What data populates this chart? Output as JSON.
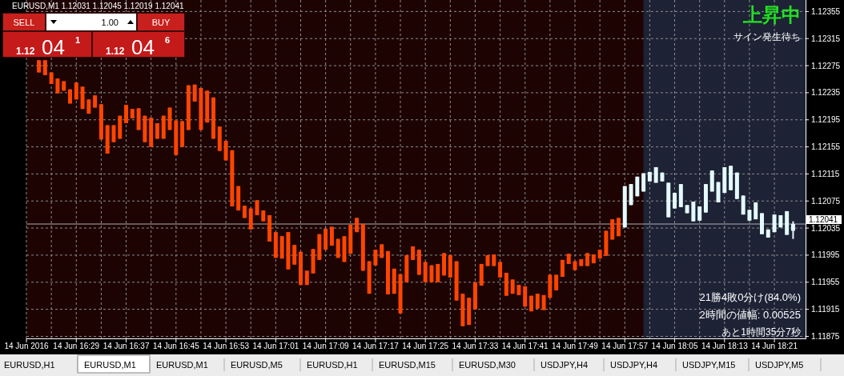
{
  "chart_data": {
    "type": "candlestick",
    "title": "EURUSD,M1  1.12031 1.12045 1.12019 1.12041",
    "xlim": [
      "2016-06-14T16:21",
      "2016-06-14T18:26"
    ],
    "ylim": [
      1.11872,
      1.12372
    ],
    "yticks": [
      1.12355,
      1.12315,
      1.12275,
      1.12235,
      1.12195,
      1.12155,
      1.12115,
      1.12075,
      1.12035,
      1.11995,
      1.11955,
      1.11915,
      1.11875
    ],
    "xticks": [
      {
        "value": "2016-06-14T16:21",
        "label": "14 Jun 2016"
      },
      {
        "value": "2016-06-14T16:25",
        "label": null
      },
      {
        "value": "2016-06-14T16:29",
        "label": "14 Jun 16:29"
      },
      {
        "value": "2016-06-14T16:33",
        "label": null
      },
      {
        "value": "2016-06-14T16:37",
        "label": "14 Jun 16:37"
      },
      {
        "value": "2016-06-14T16:41",
        "label": null
      },
      {
        "value": "2016-06-14T16:45",
        "label": "14 Jun 16:45"
      },
      {
        "value": "2016-06-14T16:49",
        "label": null
      },
      {
        "value": "2016-06-14T16:53",
        "label": "14 Jun 16:53"
      },
      {
        "value": "2016-06-14T16:57",
        "label": null
      },
      {
        "value": "2016-06-14T17:01",
        "label": "14 Jun 17:01"
      },
      {
        "value": "2016-06-14T17:05",
        "label": null
      },
      {
        "value": "2016-06-14T17:09",
        "label": "14 Jun 17:09"
      },
      {
        "value": "2016-06-14T17:13",
        "label": null
      },
      {
        "value": "2016-06-14T17:17",
        "label": "14 Jun 17:17"
      },
      {
        "value": "2016-06-14T17:21",
        "label": null
      },
      {
        "value": "2016-06-14T17:25",
        "label": "14 Jun 17:25"
      },
      {
        "value": "2016-06-14T17:29",
        "label": null
      },
      {
        "value": "2016-06-14T17:33",
        "label": "14 Jun 17:33"
      },
      {
        "value": "2016-06-14T17:37",
        "label": null
      },
      {
        "value": "2016-06-14T17:41",
        "label": "14 Jun 17:41"
      },
      {
        "value": "2016-06-14T17:45",
        "label": null
      },
      {
        "value": "2016-06-14T17:49",
        "label": "14 Jun 17:49"
      },
      {
        "value": "2016-06-14T17:53",
        "label": null
      },
      {
        "value": "2016-06-14T17:57",
        "label": "14 Jun 17:57"
      },
      {
        "value": "2016-06-14T18:01",
        "label": null
      },
      {
        "value": "2016-06-14T18:05",
        "label": "14 Jun 18:05"
      },
      {
        "value": "2016-06-14T18:09",
        "label": null
      },
      {
        "value": "2016-06-14T18:13",
        "label": "14 Jun 18:13"
      },
      {
        "value": "2016-06-14T18:17",
        "label": null
      },
      {
        "value": "2016-06-14T18:21",
        "label": "14 Jun 18:21"
      }
    ],
    "grid": true,
    "bands": [
      {
        "axis": "x",
        "from": "2016-06-14T18:00",
        "to": "2016-06-14T18:26",
        "color": "#1d2235"
      }
    ],
    "ref_lines": [
      {
        "axis": "y",
        "value": 1.12041,
        "label": "1.12041",
        "color": "#b0b0b0"
      }
    ],
    "series": [
      {
        "color": "#ff4500",
        "x": [
          "2016-06-14T16:23",
          "2016-06-14T16:24",
          "2016-06-14T16:25",
          "2016-06-14T16:26",
          "2016-06-14T16:27",
          "2016-06-14T16:28",
          "2016-06-14T16:29",
          "2016-06-14T16:30",
          "2016-06-14T16:31",
          "2016-06-14T16:32",
          "2016-06-14T16:33",
          "2016-06-14T16:34",
          "2016-06-14T16:35",
          "2016-06-14T16:36",
          "2016-06-14T16:37",
          "2016-06-14T16:38",
          "2016-06-14T16:39",
          "2016-06-14T16:40",
          "2016-06-14T16:41",
          "2016-06-14T16:42",
          "2016-06-14T16:43",
          "2016-06-14T16:44",
          "2016-06-14T16:45",
          "2016-06-14T16:46",
          "2016-06-14T16:47",
          "2016-06-14T16:48",
          "2016-06-14T16:49",
          "2016-06-14T16:50",
          "2016-06-14T16:51",
          "2016-06-14T16:52",
          "2016-06-14T16:53",
          "2016-06-14T16:54",
          "2016-06-14T16:55",
          "2016-06-14T16:56",
          "2016-06-14T16:57",
          "2016-06-14T16:58",
          "2016-06-14T16:59",
          "2016-06-14T17:00",
          "2016-06-14T17:01",
          "2016-06-14T17:02",
          "2016-06-14T17:03",
          "2016-06-14T17:04",
          "2016-06-14T17:05",
          "2016-06-14T17:06",
          "2016-06-14T17:07",
          "2016-06-14T17:08",
          "2016-06-14T17:09",
          "2016-06-14T17:10",
          "2016-06-14T17:11",
          "2016-06-14T17:12",
          "2016-06-14T17:13",
          "2016-06-14T17:14",
          "2016-06-14T17:15",
          "2016-06-14T17:16",
          "2016-06-14T17:17",
          "2016-06-14T17:18",
          "2016-06-14T17:19",
          "2016-06-14T17:20",
          "2016-06-14T17:21",
          "2016-06-14T17:22",
          "2016-06-14T17:23",
          "2016-06-14T17:24",
          "2016-06-14T17:25",
          "2016-06-14T17:26",
          "2016-06-14T17:27",
          "2016-06-14T17:28",
          "2016-06-14T17:29",
          "2016-06-14T17:30",
          "2016-06-14T17:31",
          "2016-06-14T17:32",
          "2016-06-14T17:33",
          "2016-06-14T17:34",
          "2016-06-14T17:35",
          "2016-06-14T17:36",
          "2016-06-14T17:37",
          "2016-06-14T17:38",
          "2016-06-14T17:39",
          "2016-06-14T17:40",
          "2016-06-14T17:41",
          "2016-06-14T17:42",
          "2016-06-14T17:43",
          "2016-06-14T17:44",
          "2016-06-14T17:45",
          "2016-06-14T17:46",
          "2016-06-14T17:47",
          "2016-06-14T17:48",
          "2016-06-14T17:49",
          "2016-06-14T17:50",
          "2016-06-14T17:51",
          "2016-06-14T17:52",
          "2016-06-14T17:53",
          "2016-06-14T17:54",
          "2016-06-14T17:55",
          "2016-06-14T17:56"
        ],
        "ohlc": [
          [
            1.12283,
            1.12283,
            1.12265,
            1.12265
          ],
          [
            1.12283,
            1.12283,
            1.12261,
            1.12261
          ],
          [
            1.12265,
            1.12265,
            1.12248,
            1.12248
          ],
          [
            1.12256,
            1.12256,
            1.12234,
            1.12234
          ],
          [
            1.12252,
            1.12252,
            1.12238,
            1.12238
          ],
          [
            1.1224,
            1.1224,
            1.12219,
            1.12219
          ],
          [
            1.1225,
            1.1225,
            1.12225,
            1.12225
          ],
          [
            1.12244,
            1.12244,
            1.12211,
            1.12211
          ],
          [
            1.12225,
            1.12225,
            1.12204,
            1.12204
          ],
          [
            1.12231,
            1.12231,
            1.12213,
            1.12213
          ],
          [
            1.12218,
            1.12218,
            1.12166,
            1.12166
          ],
          [
            1.12187,
            1.12187,
            1.12145,
            1.12145
          ],
          [
            1.12187,
            1.12187,
            1.12162,
            1.12162
          ],
          [
            1.12201,
            1.12201,
            1.12167,
            1.12167
          ],
          [
            1.12217,
            1.12217,
            1.1219,
            1.1219
          ],
          [
            1.12211,
            1.12211,
            1.12197,
            1.12197
          ],
          [
            1.12212,
            1.12212,
            1.1218,
            1.1218
          ],
          [
            1.12201,
            1.12201,
            1.12162,
            1.12162
          ],
          [
            1.12198,
            1.12198,
            1.12155,
            1.12155
          ],
          [
            1.1219,
            1.1219,
            1.12167,
            1.12167
          ],
          [
            1.12201,
            1.12201,
            1.12167,
            1.12167
          ],
          [
            1.12213,
            1.12213,
            1.1218,
            1.1218
          ],
          [
            1.12194,
            1.12194,
            1.12143,
            1.12143
          ],
          [
            1.12193,
            1.12193,
            1.12155,
            1.12155
          ],
          [
            1.12246,
            1.12246,
            1.1218,
            1.1218
          ],
          [
            1.12247,
            1.12247,
            1.12222,
            1.12222
          ],
          [
            1.12242,
            1.12242,
            1.1218,
            1.1218
          ],
          [
            1.12238,
            1.12238,
            1.12191,
            1.12191
          ],
          [
            1.12228,
            1.12228,
            1.12167,
            1.12167
          ],
          [
            1.12185,
            1.12185,
            1.12149,
            1.12149
          ],
          [
            1.12164,
            1.12164,
            1.12135,
            1.12135
          ],
          [
            1.1215,
            1.1215,
            1.12067,
            1.12067
          ],
          [
            1.12097,
            1.12097,
            1.12061,
            1.12061
          ],
          [
            1.12068,
            1.12068,
            1.1205,
            1.1205
          ],
          [
            1.12064,
            1.12064,
            1.12033,
            1.12033
          ],
          [
            1.12076,
            1.12076,
            1.12054,
            1.12054
          ],
          [
            1.12061,
            1.12061,
            1.12045,
            1.12045
          ],
          [
            1.12054,
            1.12054,
            1.12015,
            1.12015
          ],
          [
            1.12029,
            1.12029,
            1.11991,
            1.11991
          ],
          [
            1.12023,
            1.12023,
            1.1199,
            1.1199
          ],
          [
            1.12029,
            1.12029,
            1.11974,
            1.11974
          ],
          [
            1.1201,
            1.1201,
            1.11981,
            1.11981
          ],
          [
            1.12,
            1.12,
            1.11951,
            1.11951
          ],
          [
            1.11972,
            1.11972,
            1.11951,
            1.11951
          ],
          [
            1.12004,
            1.12004,
            1.11968,
            1.11968
          ],
          [
            1.12026,
            1.12026,
            1.11988,
            1.11988
          ],
          [
            1.12034,
            1.12034,
            1.12003,
            1.12003
          ],
          [
            1.12037,
            1.12037,
            1.12009,
            1.12009
          ],
          [
            1.12019,
            1.12019,
            1.11991,
            1.11991
          ],
          [
            1.12023,
            1.12023,
            1.11985,
            1.11985
          ],
          [
            1.1204,
            1.1204,
            1.11997,
            1.11997
          ],
          [
            1.1205,
            1.1205,
            1.12029,
            1.12029
          ],
          [
            1.12041,
            1.12041,
            1.11972,
            1.11972
          ],
          [
            1.11986,
            1.11986,
            1.11938,
            1.11938
          ],
          [
            1.12003,
            1.12003,
            1.1198,
            1.1198
          ],
          [
            1.12011,
            1.12011,
            1.11991,
            1.11991
          ],
          [
            1.12001,
            1.12001,
            1.11937,
            1.11937
          ],
          [
            1.11975,
            1.11975,
            1.11938,
            1.11938
          ],
          [
            1.11967,
            1.11967,
            1.11909,
            1.11909
          ],
          [
            1.11995,
            1.11995,
            1.11955,
            1.11955
          ],
          [
            1.12008,
            1.12008,
            1.11988,
            1.11988
          ],
          [
            1.12003,
            1.12003,
            1.11966,
            1.11966
          ],
          [
            1.11985,
            1.11985,
            1.11955,
            1.11955
          ],
          [
            1.1198,
            1.1198,
            1.11955,
            1.11955
          ],
          [
            1.11982,
            1.11982,
            1.11955,
            1.11955
          ],
          [
            1.11998,
            1.11998,
            1.11965,
            1.11965
          ],
          [
            1.11995,
            1.11995,
            1.11962,
            1.11962
          ],
          [
            1.11986,
            1.11986,
            1.11928,
            1.11928
          ],
          [
            1.11938,
            1.11938,
            1.1189,
            1.1189
          ],
          [
            1.11932,
            1.11932,
            1.11892,
            1.11892
          ],
          [
            1.11955,
            1.11955,
            1.11915,
            1.11915
          ],
          [
            1.11982,
            1.11982,
            1.1195,
            1.1195
          ],
          [
            1.11995,
            1.11995,
            1.11979,
            1.11979
          ],
          [
            1.11996,
            1.11996,
            1.11979,
            1.11979
          ],
          [
            1.11985,
            1.11985,
            1.11962,
            1.11962
          ],
          [
            1.11969,
            1.11969,
            1.11935,
            1.11935
          ],
          [
            1.11959,
            1.11959,
            1.11938,
            1.11938
          ],
          [
            1.11951,
            1.11951,
            1.11936,
            1.11936
          ],
          [
            1.11949,
            1.11949,
            1.11919,
            1.11919
          ],
          [
            1.11935,
            1.11935,
            1.11912,
            1.11912
          ],
          [
            1.11938,
            1.11938,
            1.11916,
            1.11916
          ],
          [
            1.11936,
            1.11936,
            1.11914,
            1.11914
          ],
          [
            1.11966,
            1.11966,
            1.11932,
            1.11932
          ],
          [
            1.11966,
            1.11966,
            1.11943,
            1.11943
          ],
          [
            1.11988,
            1.11988,
            1.11963,
            1.11963
          ],
          [
            1.11997,
            1.11997,
            1.11982,
            1.11982
          ],
          [
            1.11986,
            1.11986,
            1.11973,
            1.11973
          ],
          [
            1.11989,
            1.11989,
            1.11979,
            1.11979
          ],
          [
            1.11998,
            1.11998,
            1.11979,
            1.11979
          ],
          [
            1.11996,
            1.11996,
            1.11983,
            1.11983
          ],
          [
            1.12003,
            1.12003,
            1.1199,
            1.1199
          ],
          [
            1.12031,
            1.12031,
            1.11994,
            1.11994
          ],
          [
            1.12048,
            1.12048,
            1.12018,
            1.12018
          ],
          [
            1.1205,
            1.1205,
            1.12023,
            1.12023
          ]
        ]
      },
      {
        "color": "#e4faff",
        "x": [
          "2016-06-14T17:57",
          "2016-06-14T17:58",
          "2016-06-14T17:59",
          "2016-06-14T18:00",
          "2016-06-14T18:01",
          "2016-06-14T18:02",
          "2016-06-14T18:03",
          "2016-06-14T18:04",
          "2016-06-14T18:05",
          "2016-06-14T18:06",
          "2016-06-14T18:07",
          "2016-06-14T18:08",
          "2016-06-14T18:09",
          "2016-06-14T18:10",
          "2016-06-14T18:11",
          "2016-06-14T18:12",
          "2016-06-14T18:13",
          "2016-06-14T18:14",
          "2016-06-14T18:15",
          "2016-06-14T18:16",
          "2016-06-14T18:17",
          "2016-06-14T18:18",
          "2016-06-14T18:19",
          "2016-06-14T18:20",
          "2016-06-14T18:21",
          "2016-06-14T18:22",
          "2016-06-14T18:23",
          "2016-06-14T18:24"
        ],
        "ohlc": [
          [
            1.12036,
            1.12097,
            1.12036,
            1.12097
          ],
          [
            1.12069,
            1.121,
            1.12069,
            1.121
          ],
          [
            1.12082,
            1.12111,
            1.12082,
            1.12111
          ],
          [
            1.12089,
            1.12116,
            1.12089,
            1.12116
          ],
          [
            1.12104,
            1.12118,
            1.12104,
            1.12118
          ],
          [
            1.12102,
            1.12125,
            1.12102,
            1.12125
          ],
          [
            1.12104,
            1.12117,
            1.12104,
            1.12117
          ],
          [
            1.12051,
            1.12102,
            1.12051,
            1.12102
          ],
          [
            1.12064,
            1.12087,
            1.12064,
            1.12087
          ],
          [
            1.12066,
            1.121,
            1.12066,
            1.121
          ],
          [
            1.12057,
            1.12069,
            1.12057,
            1.12069
          ],
          [
            1.12045,
            1.12074,
            1.12045,
            1.12074
          ],
          [
            1.12046,
            1.12067,
            1.12046,
            1.12067
          ],
          [
            1.12058,
            1.121,
            1.12058,
            1.121
          ],
          [
            1.12089,
            1.1212,
            1.12089,
            1.1212
          ],
          [
            1.12073,
            1.12103,
            1.12073,
            1.12103
          ],
          [
            1.12087,
            1.12125,
            1.12087,
            1.12125
          ],
          [
            1.12091,
            1.12127,
            1.12091,
            1.12127
          ],
          [
            1.12078,
            1.12117,
            1.12078,
            1.12117
          ],
          [
            1.12055,
            1.12083,
            1.12055,
            1.12083
          ],
          [
            1.12046,
            1.12062,
            1.12046,
            1.12062
          ],
          [
            1.12048,
            1.12073,
            1.12048,
            1.12073
          ],
          [
            1.12026,
            1.12057,
            1.12026,
            1.12057
          ],
          [
            1.12021,
            1.12033,
            1.12021,
            1.12033
          ],
          [
            1.12029,
            1.12055,
            1.12029,
            1.12055
          ],
          [
            1.12036,
            1.12054,
            1.12036,
            1.12054
          ],
          [
            1.12025,
            1.1206,
            1.12025,
            1.1206
          ],
          [
            1.12031,
            1.12045,
            1.12019,
            1.12041
          ]
        ]
      }
    ],
    "annotations": [
      "上昇中",
      "サイン発生待ち",
      "21勝4敗0分け(84.0%)",
      "2時間の値幅: 0.00525",
      "あと1時間35分7秒",
      "SELL",
      "1.00",
      "BUY",
      "1.12",
      "04",
      "1",
      "1.12",
      "04",
      "6",
      "EURUSD,H1",
      "EURUSD,M1",
      "EURUSD,M1",
      "EURUSD,M5",
      "EURUSD,H1",
      "EURUSD,M15",
      "EURUSD,M30",
      "USDJPY,H4",
      "USDJPY,H4",
      "USDJPY,M15",
      "USDJPY,M5"
    ]
  }
}
